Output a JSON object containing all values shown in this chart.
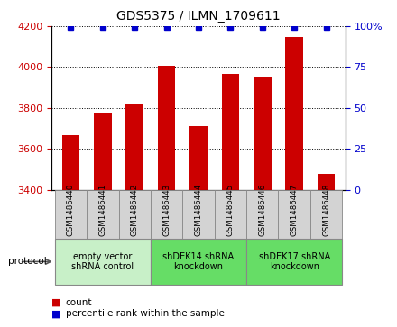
{
  "title": "GDS5375 / ILMN_1709611",
  "samples": [
    "GSM1486440",
    "GSM1486441",
    "GSM1486442",
    "GSM1486443",
    "GSM1486444",
    "GSM1486445",
    "GSM1486446",
    "GSM1486447",
    "GSM1486448"
  ],
  "counts": [
    3668,
    3778,
    3822,
    4008,
    3710,
    3968,
    3948,
    4148,
    3478
  ],
  "percentiles_y": [
    99.5,
    99.5,
    99.5,
    99.5,
    99.5,
    99.5,
    99.5,
    99.5,
    99.5
  ],
  "ylim_left": [
    3400,
    4200
  ],
  "ylim_right": [
    0,
    100
  ],
  "yticks_left": [
    3400,
    3600,
    3800,
    4000,
    4200
  ],
  "yticks_right": [
    0,
    25,
    50,
    75,
    100
  ],
  "bar_color": "#cc0000",
  "dot_color": "#0000cc",
  "sample_box_color": "#d3d3d3",
  "group1_color": "#c8f0c8",
  "group2_color": "#66dd66",
  "groups": [
    {
      "label": "empty vector\nshRNA control",
      "start": 0,
      "end": 2,
      "color_key": "group1_color"
    },
    {
      "label": "shDEK14 shRNA\nknockdown",
      "start": 3,
      "end": 5,
      "color_key": "group2_color"
    },
    {
      "label": "shDEK17 shRNA\nknockdown",
      "start": 6,
      "end": 8,
      "color_key": "group2_color"
    }
  ],
  "legend_count_label": "count",
  "legend_percentile_label": "percentile rank within the sample",
  "tick_color_left": "#cc0000",
  "tick_color_right": "#0000cc",
  "fig_width": 4.4,
  "fig_height": 3.63,
  "dpi": 100
}
